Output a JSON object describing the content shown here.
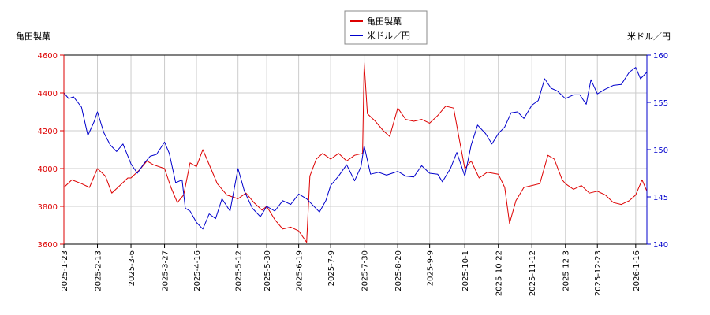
{
  "chart_data": {
    "type": "line",
    "left_axis_label": "亀田製菓",
    "right_axis_label": "米ドル／円",
    "legend": {
      "placement": "top-center",
      "entries": [
        "亀田製菓",
        "米ドル／円"
      ]
    },
    "grid": true,
    "left_ylim": [
      3600,
      4600
    ],
    "right_ylim": [
      140,
      160
    ],
    "left_ticks": [
      3600,
      3800,
      4000,
      4200,
      4400,
      4600
    ],
    "right_ticks": [
      140,
      145,
      150,
      155,
      160
    ],
    "x_range": [
      "2025-01-23",
      "2026-01-23"
    ],
    "x_tick_labels": [
      "2025-1-23",
      "2025-2-13",
      "2025-3-6",
      "2025-3-27",
      "2025-4-16",
      "2025-5-12",
      "2025-5-30",
      "2025-6-19",
      "2025-7-9",
      "2025-7-30",
      "2025-8-20",
      "2025-9-9",
      "2025-10-1",
      "2025-10-22",
      "2025-11-12",
      "2025-12-3",
      "2025-12-23",
      "2026-1-16"
    ],
    "series": [
      {
        "name": "亀田製菓",
        "axis": "left",
        "color": "#dd0000",
        "points": [
          [
            "2025-01-23",
            3900
          ],
          [
            "2025-01-28",
            3940
          ],
          [
            "2025-02-03",
            3920
          ],
          [
            "2025-02-08",
            3900
          ],
          [
            "2025-02-13",
            4000
          ],
          [
            "2025-02-18",
            3960
          ],
          [
            "2025-02-22",
            3870
          ],
          [
            "2025-02-27",
            3910
          ],
          [
            "2025-03-04",
            3950
          ],
          [
            "2025-03-06",
            3950
          ],
          [
            "2025-03-11",
            3990
          ],
          [
            "2025-03-16",
            4040
          ],
          [
            "2025-03-20",
            4020
          ],
          [
            "2025-03-27",
            4000
          ],
          [
            "2025-03-31",
            3900
          ],
          [
            "2025-04-04",
            3820
          ],
          [
            "2025-04-08",
            3860
          ],
          [
            "2025-04-12",
            4030
          ],
          [
            "2025-04-16",
            4010
          ],
          [
            "2025-04-20",
            4100
          ],
          [
            "2025-04-25",
            4000
          ],
          [
            "2025-04-29",
            3920
          ],
          [
            "2025-05-05",
            3860
          ],
          [
            "2025-05-12",
            3840
          ],
          [
            "2025-05-17",
            3870
          ],
          [
            "2025-05-22",
            3820
          ],
          [
            "2025-05-27",
            3780
          ],
          [
            "2025-05-30",
            3800
          ],
          [
            "2025-06-04",
            3730
          ],
          [
            "2025-06-09",
            3680
          ],
          [
            "2025-06-14",
            3690
          ],
          [
            "2025-06-19",
            3670
          ],
          [
            "2025-06-24",
            3610
          ],
          [
            "2025-06-26",
            3960
          ],
          [
            "2025-06-30",
            4050
          ],
          [
            "2025-07-04",
            4080
          ],
          [
            "2025-07-09",
            4050
          ],
          [
            "2025-07-14",
            4080
          ],
          [
            "2025-07-19",
            4040
          ],
          [
            "2025-07-24",
            4070
          ],
          [
            "2025-07-29",
            4080
          ],
          [
            "2025-07-30",
            4560
          ],
          [
            "2025-08-01",
            4290
          ],
          [
            "2025-08-06",
            4250
          ],
          [
            "2025-08-11",
            4200
          ],
          [
            "2025-08-15",
            4170
          ],
          [
            "2025-08-20",
            4320
          ],
          [
            "2025-08-25",
            4260
          ],
          [
            "2025-08-30",
            4250
          ],
          [
            "2025-09-04",
            4260
          ],
          [
            "2025-09-09",
            4240
          ],
          [
            "2025-09-14",
            4280
          ],
          [
            "2025-09-19",
            4330
          ],
          [
            "2025-09-24",
            4320
          ],
          [
            "2025-09-27",
            4180
          ],
          [
            "2025-10-01",
            4000
          ],
          [
            "2025-10-05",
            4040
          ],
          [
            "2025-10-10",
            3950
          ],
          [
            "2025-10-15",
            3980
          ],
          [
            "2025-10-22",
            3970
          ],
          [
            "2025-10-26",
            3900
          ],
          [
            "2025-10-29",
            3710
          ],
          [
            "2025-11-02",
            3830
          ],
          [
            "2025-11-07",
            3900
          ],
          [
            "2025-11-12",
            3910
          ],
          [
            "2025-11-17",
            3920
          ],
          [
            "2025-11-22",
            4070
          ],
          [
            "2025-11-26",
            4050
          ],
          [
            "2025-12-01",
            3940
          ],
          [
            "2025-12-03",
            3920
          ],
          [
            "2025-12-08",
            3890
          ],
          [
            "2025-12-13",
            3910
          ],
          [
            "2025-12-18",
            3870
          ],
          [
            "2025-12-23",
            3880
          ],
          [
            "2025-12-28",
            3860
          ],
          [
            "2026-01-02",
            3820
          ],
          [
            "2026-01-07",
            3810
          ],
          [
            "2026-01-12",
            3830
          ],
          [
            "2026-01-16",
            3860
          ],
          [
            "2026-01-20",
            3940
          ],
          [
            "2026-01-23",
            3880
          ]
        ]
      },
      {
        "name": "米ドル／円",
        "axis": "right",
        "color": "#0000cc",
        "points": [
          [
            "2025-01-23",
            156.0
          ],
          [
            "2025-01-26",
            155.4
          ],
          [
            "2025-01-29",
            155.6
          ],
          [
            "2025-02-03",
            154.5
          ],
          [
            "2025-02-07",
            151.5
          ],
          [
            "2025-02-11",
            153.0
          ],
          [
            "2025-02-13",
            154.0
          ],
          [
            "2025-02-17",
            151.8
          ],
          [
            "2025-02-21",
            150.5
          ],
          [
            "2025-02-25",
            149.8
          ],
          [
            "2025-03-01",
            150.6
          ],
          [
            "2025-03-06",
            148.5
          ],
          [
            "2025-03-10",
            147.5
          ],
          [
            "2025-03-14",
            148.5
          ],
          [
            "2025-03-18",
            149.3
          ],
          [
            "2025-03-22",
            149.5
          ],
          [
            "2025-03-27",
            150.8
          ],
          [
            "2025-03-30",
            149.6
          ],
          [
            "2025-04-03",
            146.5
          ],
          [
            "2025-04-07",
            146.8
          ],
          [
            "2025-04-09",
            143.8
          ],
          [
            "2025-04-12",
            143.5
          ],
          [
            "2025-04-16",
            142.3
          ],
          [
            "2025-04-20",
            141.6
          ],
          [
            "2025-04-24",
            143.2
          ],
          [
            "2025-04-28",
            142.7
          ],
          [
            "2025-05-02",
            144.8
          ],
          [
            "2025-05-07",
            143.5
          ],
          [
            "2025-05-12",
            148.0
          ],
          [
            "2025-05-16",
            145.6
          ],
          [
            "2025-05-21",
            143.8
          ],
          [
            "2025-05-26",
            142.9
          ],
          [
            "2025-05-30",
            144.0
          ],
          [
            "2025-06-04",
            143.5
          ],
          [
            "2025-06-09",
            144.6
          ],
          [
            "2025-06-14",
            144.2
          ],
          [
            "2025-06-19",
            145.3
          ],
          [
            "2025-06-24",
            144.8
          ],
          [
            "2025-06-28",
            144.1
          ],
          [
            "2025-07-02",
            143.4
          ],
          [
            "2025-07-06",
            144.6
          ],
          [
            "2025-07-09",
            146.2
          ],
          [
            "2025-07-14",
            147.2
          ],
          [
            "2025-07-19",
            148.4
          ],
          [
            "2025-07-24",
            146.7
          ],
          [
            "2025-07-28",
            148.2
          ],
          [
            "2025-07-30",
            150.4
          ],
          [
            "2025-08-03",
            147.4
          ],
          [
            "2025-08-08",
            147.6
          ],
          [
            "2025-08-13",
            147.3
          ],
          [
            "2025-08-20",
            147.7
          ],
          [
            "2025-08-25",
            147.2
          ],
          [
            "2025-08-30",
            147.1
          ],
          [
            "2025-09-04",
            148.3
          ],
          [
            "2025-09-09",
            147.5
          ],
          [
            "2025-09-14",
            147.4
          ],
          [
            "2025-09-17",
            146.6
          ],
          [
            "2025-09-22",
            148.0
          ],
          [
            "2025-09-26",
            149.7
          ],
          [
            "2025-10-01",
            147.2
          ],
          [
            "2025-10-05",
            150.5
          ],
          [
            "2025-10-09",
            152.6
          ],
          [
            "2025-10-14",
            151.7
          ],
          [
            "2025-10-18",
            150.6
          ],
          [
            "2025-10-22",
            151.7
          ],
          [
            "2025-10-26",
            152.4
          ],
          [
            "2025-10-30",
            153.9
          ],
          [
            "2025-11-03",
            154.0
          ],
          [
            "2025-11-07",
            153.3
          ],
          [
            "2025-11-12",
            154.7
          ],
          [
            "2025-11-16",
            155.2
          ],
          [
            "2025-11-20",
            157.5
          ],
          [
            "2025-11-24",
            156.5
          ],
          [
            "2025-11-28",
            156.2
          ],
          [
            "2025-12-03",
            155.4
          ],
          [
            "2025-12-08",
            155.8
          ],
          [
            "2025-12-12",
            155.8
          ],
          [
            "2025-12-16",
            154.8
          ],
          [
            "2025-12-19",
            157.4
          ],
          [
            "2025-12-23",
            155.9
          ],
          [
            "2025-12-28",
            156.4
          ],
          [
            "2026-01-02",
            156.8
          ],
          [
            "2026-01-07",
            156.9
          ],
          [
            "2026-01-12",
            158.2
          ],
          [
            "2026-01-16",
            158.7
          ],
          [
            "2026-01-19",
            157.5
          ],
          [
            "2026-01-23",
            158.2
          ]
        ]
      }
    ]
  }
}
